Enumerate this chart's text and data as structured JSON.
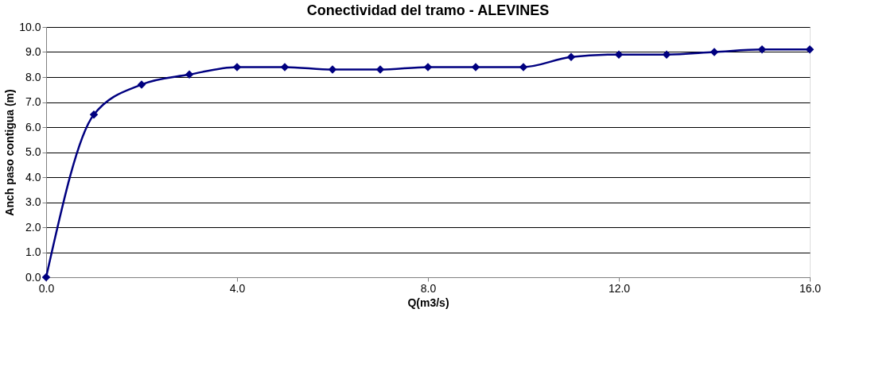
{
  "chart_data": {
    "type": "line",
    "title": "Conectividad del tramo - ALEVINES",
    "xlabel": "Q(m3/s)",
    "ylabel": "Anch paso contigua (m)",
    "x": [
      0,
      1,
      2,
      3,
      4,
      5,
      6,
      7,
      8,
      9,
      10,
      11,
      12,
      13,
      14,
      15,
      16
    ],
    "series": [
      {
        "color": "#000080",
        "values": [
          0,
          6.5,
          7.7,
          8.1,
          8.4,
          8.4,
          8.3,
          8.3,
          8.4,
          8.4,
          8.4,
          8.8,
          8.9,
          8.9,
          9.0,
          9.1,
          9.1
        ]
      }
    ],
    "xlim": [
      0,
      16
    ],
    "xticks": [
      {
        "value": 0,
        "label": "0.0"
      },
      {
        "value": 4,
        "label": "4.0"
      },
      {
        "value": 8,
        "label": "8.0"
      },
      {
        "value": 12,
        "label": "12.0"
      },
      {
        "value": 16,
        "label": "16.0"
      }
    ],
    "ylim": [
      0,
      10
    ],
    "yticks": [
      {
        "value": 0,
        "label": "0.0"
      },
      {
        "value": 1,
        "label": "1.0"
      },
      {
        "value": 2,
        "label": "2.0"
      },
      {
        "value": 3,
        "label": "3.0"
      },
      {
        "value": 4,
        "label": "4.0"
      },
      {
        "value": 5,
        "label": "5.0"
      },
      {
        "value": 6,
        "label": "6.0"
      },
      {
        "value": 7,
        "label": "7.0"
      },
      {
        "value": 8,
        "label": "8.0"
      },
      {
        "value": 9,
        "label": "9.0"
      },
      {
        "value": 10,
        "label": "10.0"
      }
    ],
    "grid": "y",
    "marker": "diamond",
    "line_style": "solid"
  }
}
